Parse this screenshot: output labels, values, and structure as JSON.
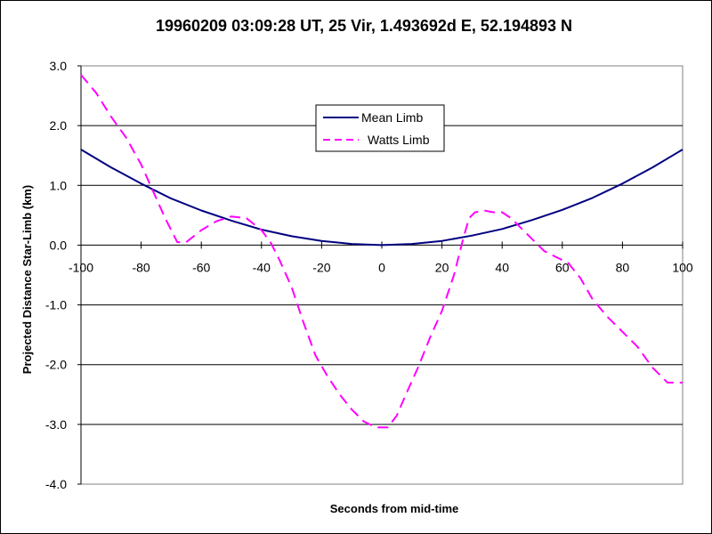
{
  "chart_data": {
    "type": "line",
    "title": "19960209 03:09:28 UT, 25 Vir, 1.493692d E, 52.194893 N",
    "xlabel": "Seconds from mid-time",
    "ylabel": "Projected Distance Star-Limb (km)",
    "xlim": [
      -100,
      100
    ],
    "ylim": [
      -4.0,
      3.0
    ],
    "x_ticks": [
      -100,
      -80,
      -60,
      -40,
      -20,
      0,
      20,
      40,
      60,
      80,
      100
    ],
    "y_ticks": [
      3.0,
      2.0,
      1.0,
      0.0,
      -1.0,
      -2.0,
      -3.0,
      -4.0
    ],
    "y_tick_labels": [
      "3.0",
      "2.0",
      "1.0",
      "0.0",
      "-1.0",
      "-2.0",
      "-3.0",
      "-4.0"
    ],
    "grid": "horizontal",
    "legend_position": "upper-center",
    "series": [
      {
        "name": "Mean Limb",
        "color": "#000080",
        "style": "solid",
        "x": [
          -100,
          -90,
          -80,
          -70,
          -60,
          -50,
          -40,
          -30,
          -20,
          -10,
          0,
          10,
          20,
          30,
          40,
          50,
          60,
          70,
          80,
          90,
          100
        ],
        "y": [
          1.6,
          1.3,
          1.03,
          0.78,
          0.58,
          0.41,
          0.26,
          0.15,
          0.07,
          0.02,
          0.0,
          0.02,
          0.07,
          0.16,
          0.27,
          0.42,
          0.59,
          0.79,
          1.03,
          1.3,
          1.6
        ]
      },
      {
        "name": "Watts Limb",
        "color": "#FF00FF",
        "style": "dashed",
        "x": [
          -100,
          -95,
          -90,
          -85,
          -80,
          -76,
          -72,
          -68,
          -65,
          -60,
          -55,
          -50,
          -45,
          -40,
          -37,
          -34,
          -30,
          -26,
          -22,
          -18,
          -14,
          -10,
          -6,
          -2,
          2,
          5,
          8,
          12,
          16,
          20,
          24,
          27,
          29,
          31,
          34,
          37,
          40,
          43,
          46,
          50,
          54,
          58,
          62,
          66,
          70,
          75,
          80,
          85,
          90,
          95,
          100
        ],
        "y": [
          2.85,
          2.55,
          2.15,
          1.8,
          1.35,
          0.9,
          0.45,
          0.05,
          0.05,
          0.25,
          0.4,
          0.48,
          0.45,
          0.25,
          0.05,
          -0.25,
          -0.7,
          -1.3,
          -1.85,
          -2.2,
          -2.5,
          -2.75,
          -2.95,
          -3.05,
          -3.05,
          -2.85,
          -2.5,
          -2.05,
          -1.55,
          -1.1,
          -0.5,
          0.1,
          0.45,
          0.55,
          0.58,
          0.55,
          0.55,
          0.45,
          0.3,
          0.1,
          -0.1,
          -0.2,
          -0.3,
          -0.55,
          -0.9,
          -1.2,
          -1.45,
          -1.7,
          -2.05,
          -2.3,
          -2.3
        ]
      }
    ]
  }
}
